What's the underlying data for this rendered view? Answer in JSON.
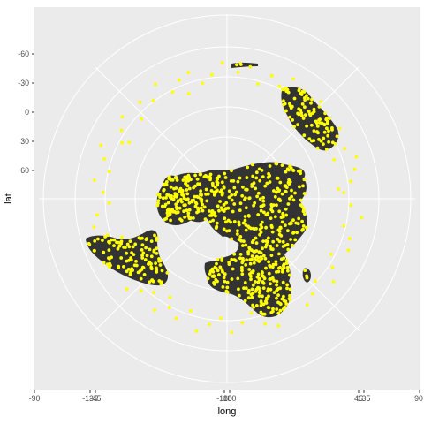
{
  "chart_data": {
    "type": "scatter",
    "title": "",
    "xlabel": "long",
    "ylabel": "lat",
    "projection": "azimuthal (polar), north pole at centre",
    "grid": true,
    "legend": "none",
    "x_ticks": [
      "-90",
      "-135",
      "-45",
      "-180",
      "180",
      "45",
      "135",
      "90"
    ],
    "y_ticks": [
      "-60",
      "-30",
      "0",
      "30",
      "60"
    ],
    "colors": {
      "panel": "#ebebeb",
      "gridline": "#ffffff",
      "land": "#333333",
      "points": "#ffff00"
    },
    "outer_ring_points": [
      {
        "long": -93,
        "lat": 5
      },
      {
        "long": -98,
        "lat": -3
      },
      {
        "long": -103,
        "lat": -9
      },
      {
        "long": -108,
        "lat": -14
      },
      {
        "long": -113,
        "lat": -6
      },
      {
        "long": -118,
        "lat": 2
      },
      {
        "long": -122,
        "lat": -11
      },
      {
        "long": -127,
        "lat": -4
      },
      {
        "long": -131,
        "lat": 4
      },
      {
        "long": -136,
        "lat": -13
      },
      {
        "long": -141,
        "lat": -7
      },
      {
        "long": -146,
        "lat": 1
      },
      {
        "long": -151,
        "lat": -15
      },
      {
        "long": -155,
        "lat": -2
      },
      {
        "long": -160,
        "lat": -9
      },
      {
        "long": -165,
        "lat": 3
      },
      {
        "long": -170,
        "lat": -12
      },
      {
        "long": -175,
        "lat": -5
      },
      {
        "long": 178,
        "lat": -14
      },
      {
        "long": 173,
        "lat": -3
      },
      {
        "long": 168,
        "lat": 4
      },
      {
        "long": 163,
        "lat": -10
      },
      {
        "long": 158,
        "lat": -6
      },
      {
        "long": 153,
        "lat": 2
      },
      {
        "long": 148,
        "lat": -13
      },
      {
        "long": 143,
        "lat": -1
      },
      {
        "long": 138,
        "lat": -8
      },
      {
        "long": 133,
        "lat": 5
      },
      {
        "long": 128,
        "lat": -11
      },
      {
        "long": 123,
        "lat": -4
      },
      {
        "long": 118,
        "lat": 3
      },
      {
        "long": 113,
        "lat": -15
      },
      {
        "long": 108,
        "lat": -7
      },
      {
        "long": 103,
        "lat": 1
      },
      {
        "long": 98,
        "lat": -12
      },
      {
        "long": 93,
        "lat": -2
      },
      {
        "long": 88,
        "lat": 4
      },
      {
        "long": 83,
        "lat": -9
      },
      {
        "long": 78,
        "lat": -14
      },
      {
        "long": 73,
        "lat": -3
      },
      {
        "long": 68,
        "lat": 5
      },
      {
        "long": 63,
        "lat": -10
      },
      {
        "long": 58,
        "lat": -6
      },
      {
        "long": 53,
        "lat": 2
      },
      {
        "long": 48,
        "lat": -13
      },
      {
        "long": 43,
        "lat": -4
      },
      {
        "long": 38,
        "lat": 3
      },
      {
        "long": 33,
        "lat": -11
      },
      {
        "long": 28,
        "lat": -1
      },
      {
        "long": 23,
        "lat": -8
      },
      {
        "long": 18,
        "lat": 4
      },
      {
        "long": 13,
        "lat": -14
      },
      {
        "long": 8,
        "lat": -5
      },
      {
        "long": 3,
        "lat": 2
      },
      {
        "long": -2,
        "lat": -12
      },
      {
        "long": -7,
        "lat": -3
      },
      {
        "long": -12,
        "lat": 5
      },
      {
        "long": -17,
        "lat": -9
      },
      {
        "long": -22,
        "lat": -15
      },
      {
        "long": -27,
        "lat": -2
      },
      {
        "long": -32,
        "lat": 3
      },
      {
        "long": -37,
        "lat": -11
      },
      {
        "long": -42,
        "lat": -6
      },
      {
        "long": -47,
        "lat": 1
      },
      {
        "long": -52,
        "lat": -13
      },
      {
        "long": -57,
        "lat": -4
      },
      {
        "long": -62,
        "lat": 4
      },
      {
        "long": -67,
        "lat": -10
      },
      {
        "long": -72,
        "lat": -7
      },
      {
        "long": -77,
        "lat": 2
      },
      {
        "long": -82,
        "lat": -14
      },
      {
        "long": -87,
        "lat": -2
      },
      {
        "long": -95,
        "lat": 10
      },
      {
        "long": -110,
        "lat": 8
      },
      {
        "long": -150,
        "lat": 9
      },
      {
        "long": 160,
        "lat": 10
      },
      {
        "long": 120,
        "lat": 9
      },
      {
        "long": 70,
        "lat": 10
      },
      {
        "long": 30,
        "lat": 8
      },
      {
        "long": -30,
        "lat": 9
      }
    ]
  }
}
